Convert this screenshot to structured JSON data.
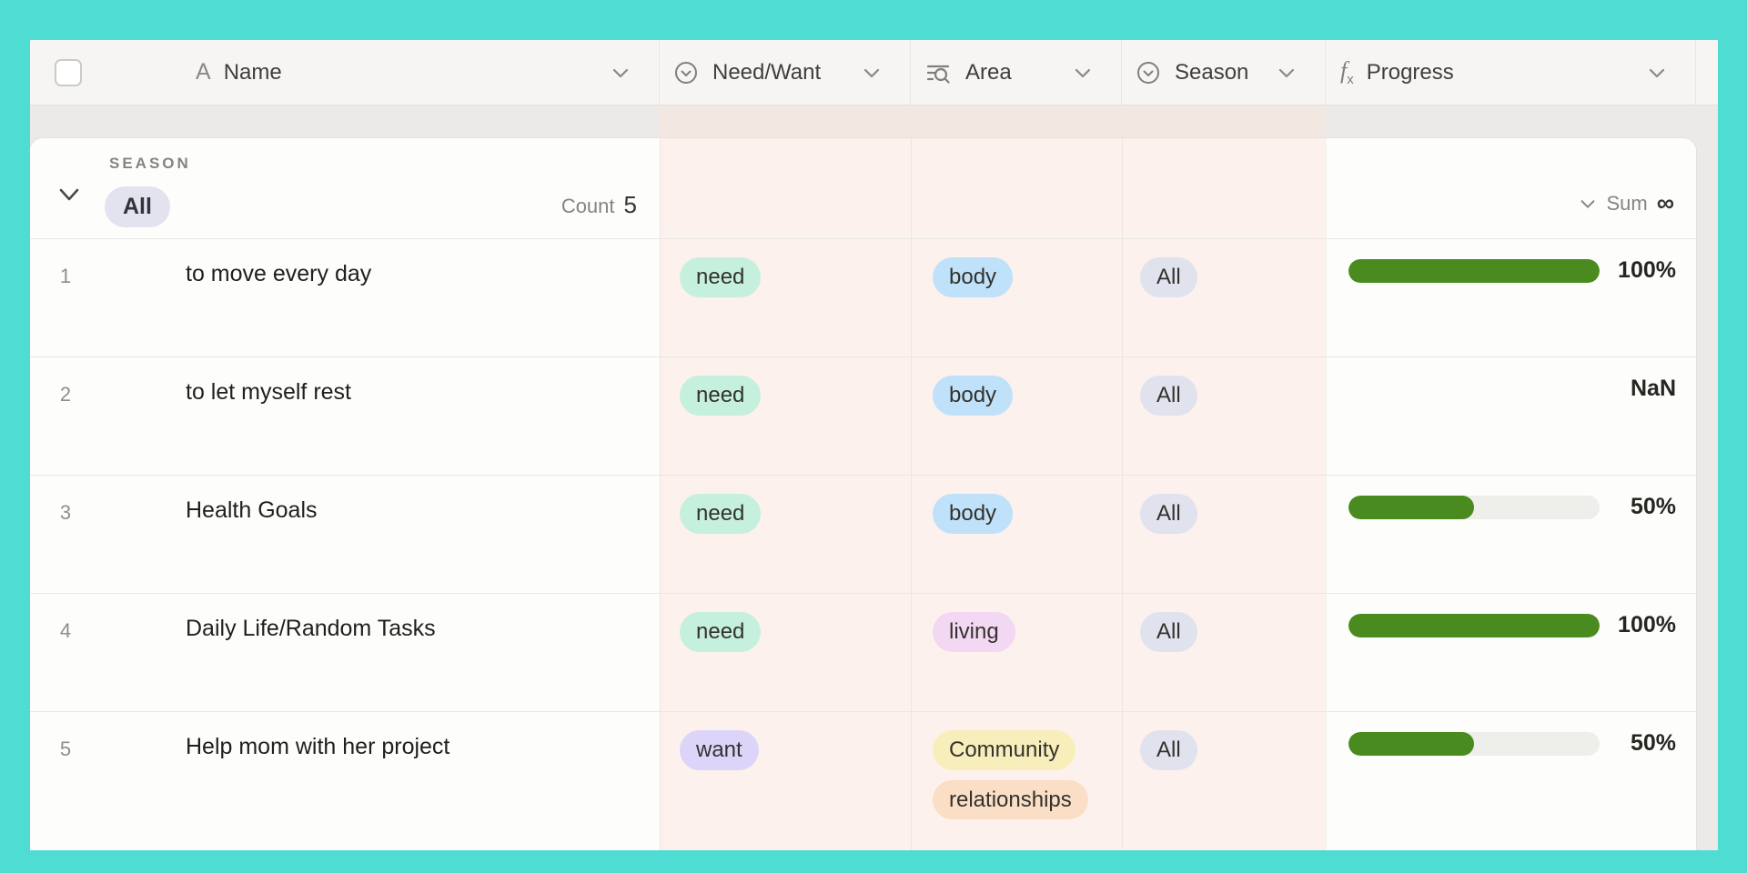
{
  "palette": {
    "frame_teal": "#4edcd3",
    "header_bg": "#f6f5f3",
    "page_gray": "#eceae8",
    "pink_column_wash": "#fcf1ec",
    "progress_green": "#4a8b1f",
    "progress_track": "#eeeeeb"
  },
  "header": {
    "columns": [
      {
        "label": "Name",
        "icon": "text-property-icon"
      },
      {
        "label": "Need/Want",
        "icon": "select-property-icon"
      },
      {
        "label": "Area",
        "icon": "multi-select-property-icon"
      },
      {
        "label": "Season",
        "icon": "select-property-icon"
      },
      {
        "label": "Progress",
        "icon": "formula-property-icon"
      }
    ],
    "formula_icon_f": "f",
    "formula_icon_sub": "x",
    "text_icon_glyph": "A"
  },
  "group": {
    "field_label": "SEASON",
    "value": "All",
    "value_bg": "#e2e3ef",
    "count_label": "Count",
    "count_value": "5",
    "sum_label": "Sum",
    "sum_value": "∞"
  },
  "chart_data": {
    "type": "table",
    "columns": [
      "Name",
      "Need/Want",
      "Area",
      "Season",
      "Progress"
    ],
    "progress_values_percent": [
      100,
      null,
      50,
      100,
      50
    ]
  },
  "rows": [
    {
      "num": "1",
      "name": "to move every day",
      "need_want": {
        "label": "need",
        "bg": "#c5f0dd"
      },
      "area": [
        {
          "label": "body",
          "bg": "#bfe1f9"
        }
      ],
      "season": {
        "label": "All",
        "bg": "#e0e2ee"
      },
      "progress": {
        "percent": 100,
        "label": "100%"
      }
    },
    {
      "num": "2",
      "name": "to let myself rest",
      "need_want": {
        "label": "need",
        "bg": "#c5f0dd"
      },
      "area": [
        {
          "label": "body",
          "bg": "#bfe1f9"
        }
      ],
      "season": {
        "label": "All",
        "bg": "#e0e2ee"
      },
      "progress": {
        "percent": null,
        "label": "NaN"
      }
    },
    {
      "num": "3",
      "name": "Health Goals",
      "need_want": {
        "label": "need",
        "bg": "#c5f0dd"
      },
      "area": [
        {
          "label": "body",
          "bg": "#bfe1f9"
        }
      ],
      "season": {
        "label": "All",
        "bg": "#e0e2ee"
      },
      "progress": {
        "percent": 50,
        "label": "50%"
      }
    },
    {
      "num": "4",
      "name": "Daily Life/Random Tasks",
      "need_want": {
        "label": "need",
        "bg": "#c5f0dd"
      },
      "area": [
        {
          "label": "living",
          "bg": "#f3d8f3"
        }
      ],
      "season": {
        "label": "All",
        "bg": "#e0e2ee"
      },
      "progress": {
        "percent": 100,
        "label": "100%"
      }
    },
    {
      "num": "5",
      "name": "Help mom with her project",
      "need_want": {
        "label": "want",
        "bg": "#dcd5f9"
      },
      "area": [
        {
          "label": "Community",
          "bg": "#f8eebb"
        },
        {
          "label": "relationships",
          "bg": "#fadec6"
        }
      ],
      "season": {
        "label": "All",
        "bg": "#e0e2ee"
      },
      "progress": {
        "percent": 50,
        "label": "50%"
      }
    }
  ]
}
